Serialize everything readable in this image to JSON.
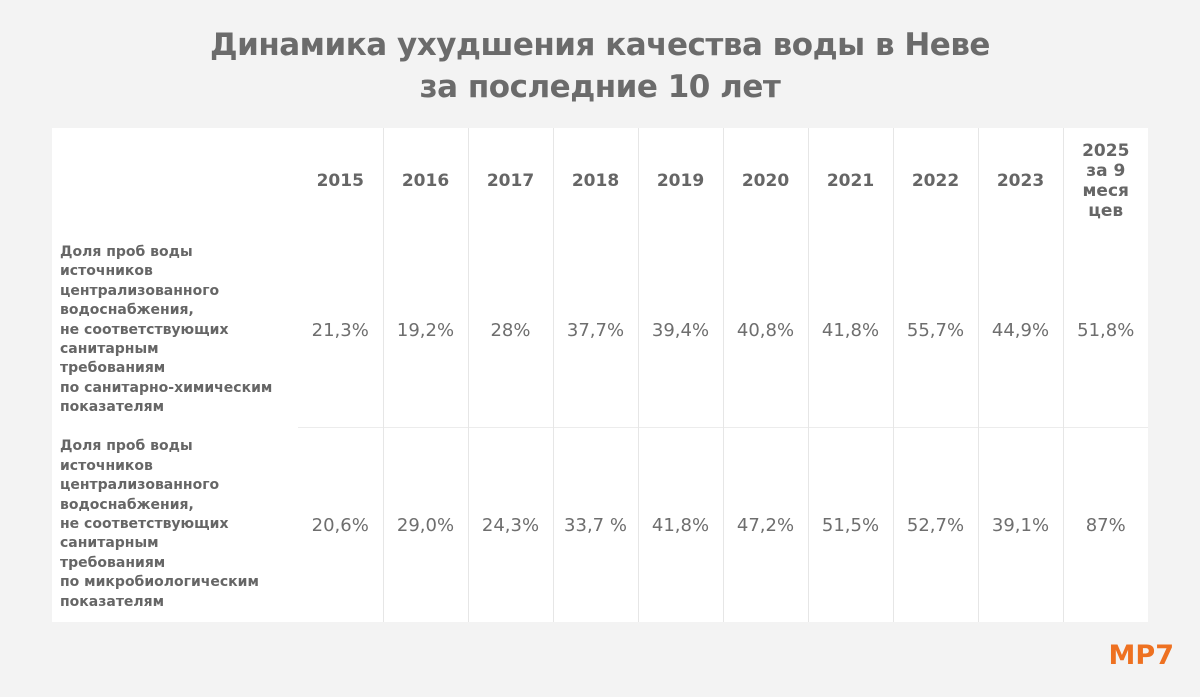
{
  "header": {
    "title": [
      "Динамика ухудшения качества воды в Неве",
      "за последние 10 лет"
    ]
  },
  "table": {
    "columns": [
      "2015",
      "2016",
      "2017",
      "2018",
      "2019",
      "2020",
      "2021",
      "2022",
      "2023",
      "2025 за 9 месяцев"
    ],
    "rows": [
      {
        "label": "Доля проб воды\nисточников\nцентрализованного\nводоснабжения,\nне соответствующих\nсанитарным\nтребованиям\nпо санитарно-химическим\nпоказателям",
        "values": [
          "21,3%",
          "19,2%",
          "28%",
          "37,7%",
          "39,4%",
          "40,8%",
          "41,8%",
          "55,7%",
          "44,9%",
          "51,8%"
        ]
      },
      {
        "label": "Доля проб воды\nисточников\nцентрализованного\nводоснабжения,\nне соответствующих\nсанитарным\nтребованиям\nпо микробиологическим\nпоказателям",
        "values": [
          "20,6%",
          "29,0%",
          "24,3%",
          "33,7 %",
          "41,8%",
          "47,2%",
          "51,5%",
          "52,7%",
          "39,1%",
          "87%"
        ]
      }
    ]
  },
  "footer": {
    "logo": "МР7"
  }
}
